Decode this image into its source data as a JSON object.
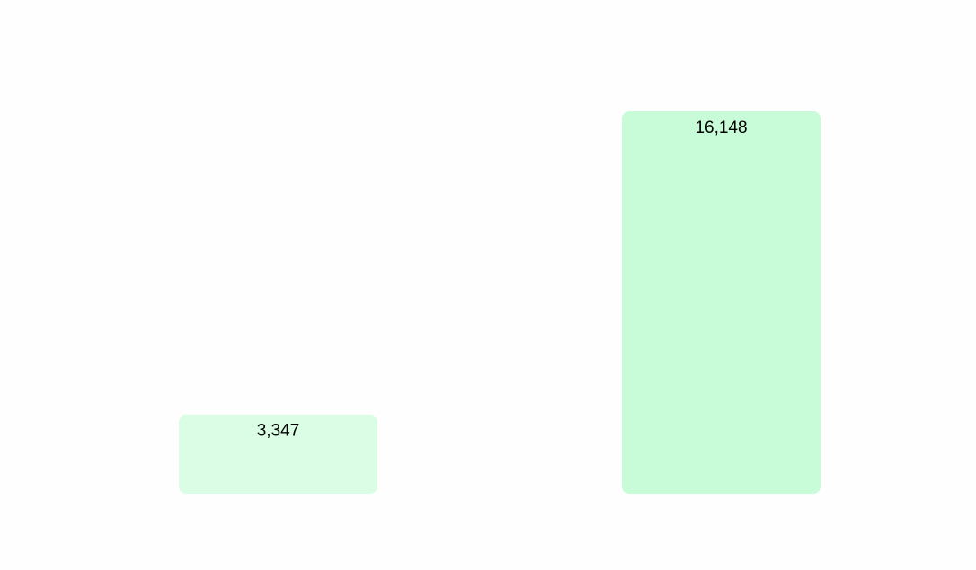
{
  "chart_data": {
    "type": "bar",
    "categories": [
      "",
      ""
    ],
    "values": [
      3347,
      16148
    ],
    "data_labels": [
      "3,347",
      "16,148"
    ],
    "colors": [
      "#dcfde5",
      "#c8fcd9"
    ],
    "label_color": "#000000",
    "ylim": [
      0,
      16148
    ],
    "grid": false,
    "legend": "none",
    "title": "",
    "xlabel": "",
    "ylabel": ""
  }
}
